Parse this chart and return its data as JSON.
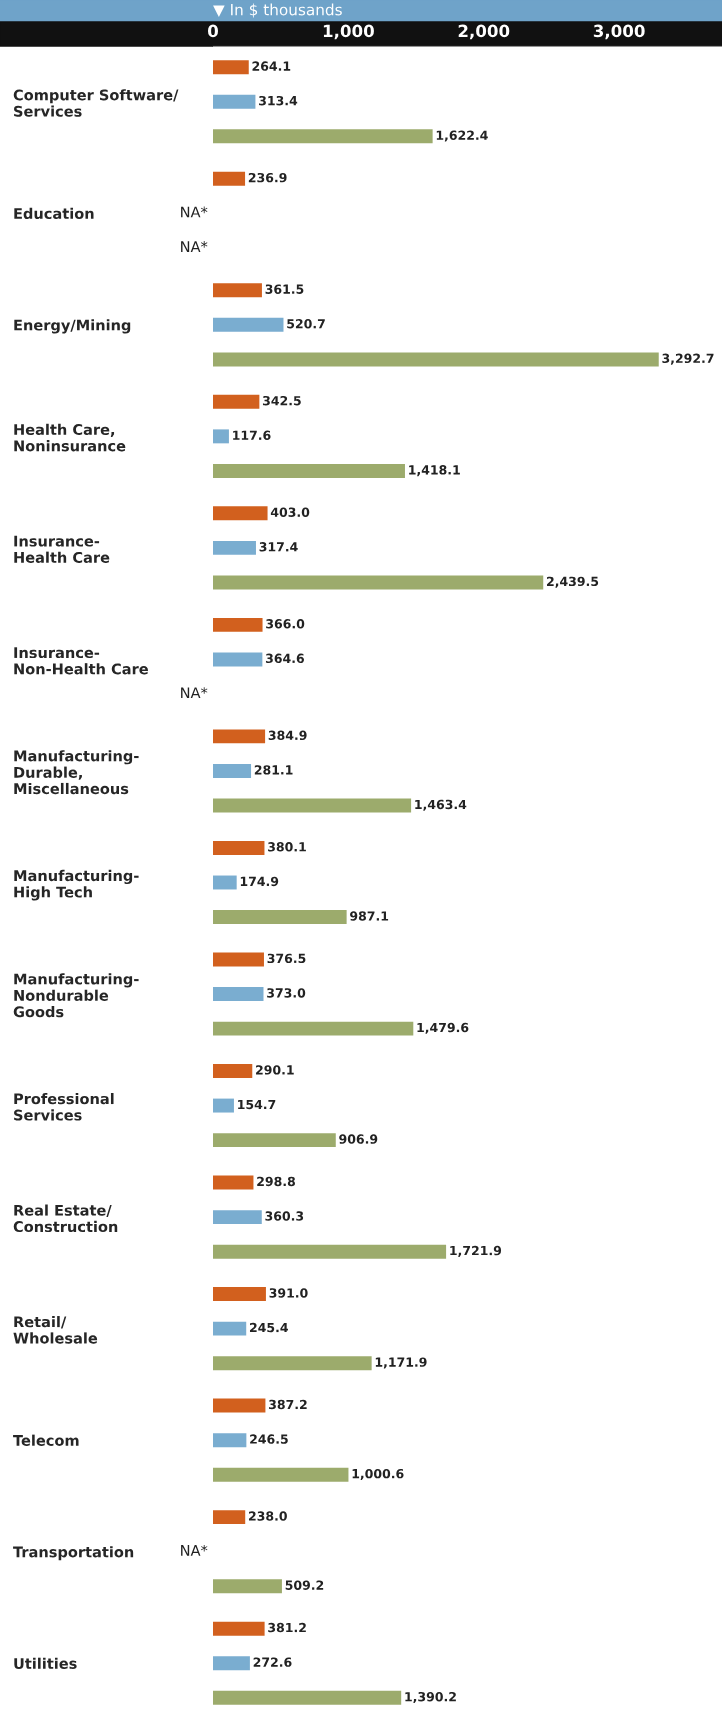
{
  "chart_data": {
    "type": "bar",
    "orientation": "horizontal",
    "xlabel": "▼ In $ thousands",
    "categories": [
      "Computer Software/\nServices",
      "Education",
      "Energy/Mining",
      "Health Care,\nNoninsurance",
      "Insurance-\nHealth Care",
      "Insurance-\nNon-Health Care",
      "Manufacturing-\nDurable,\nMiscellaneous",
      "Manufacturing-\nHigh Tech",
      "Manufacturing-\nNondurable\nGoods",
      "Professional\nServices",
      "Real Estate/\nConstruction",
      "Retail/\nWholesale",
      "Telecom",
      "Transportation",
      "Utilities"
    ],
    "series": [
      {
        "color": "#d2601e",
        "values": [
          264.1,
          236.9,
          361.5,
          342.5,
          403.0,
          366.0,
          384.9,
          380.1,
          376.5,
          290.1,
          298.8,
          391.0,
          387.2,
          238.0,
          381.2
        ],
        "value_labels": [
          "264.1",
          "236.9",
          "361.5",
          "342.5",
          "403.0",
          "366.0",
          "384.9",
          "380.1",
          "376.5",
          "290.1",
          "298.8",
          "391.0",
          "387.2",
          "238.0",
          "381.2"
        ]
      },
      {
        "color": "#7aadd0",
        "values": [
          313.4,
          null,
          520.7,
          117.6,
          317.4,
          364.6,
          281.1,
          174.9,
          373.0,
          154.7,
          360.3,
          245.4,
          246.5,
          null,
          272.6
        ],
        "value_labels": [
          "313.4",
          "NA*",
          "520.7",
          "117.6",
          "317.4",
          "364.6",
          "281.1",
          "174.9",
          "373.0",
          "154.7",
          "360.3",
          "245.4",
          "246.5",
          "NA*",
          "272.6"
        ]
      },
      {
        "color": "#9cab6c",
        "values": [
          1622.4,
          null,
          3292.7,
          1418.1,
          2439.5,
          null,
          1463.4,
          987.1,
          1479.6,
          906.9,
          1721.9,
          1171.9,
          1000.6,
          509.2,
          1390.2
        ],
        "value_labels": [
          "1,622.4",
          "NA*",
          "3,292.7",
          "1,418.1",
          "2,439.5",
          "NA*",
          "1,463.4",
          "987.1",
          "1,479.6",
          "906.9",
          "1,721.9",
          "1,171.9",
          "1,000.6",
          "509.2",
          "1,390.2"
        ]
      }
    ],
    "xlim": [
      0,
      3760
    ],
    "xticks": [
      0,
      {
        "value": 1000,
        "label": "1,000"
      },
      {
        "value": 2000,
        "label": "2,000"
      },
      {
        "value": 3000,
        "label": "3,000"
      }
    ]
  }
}
